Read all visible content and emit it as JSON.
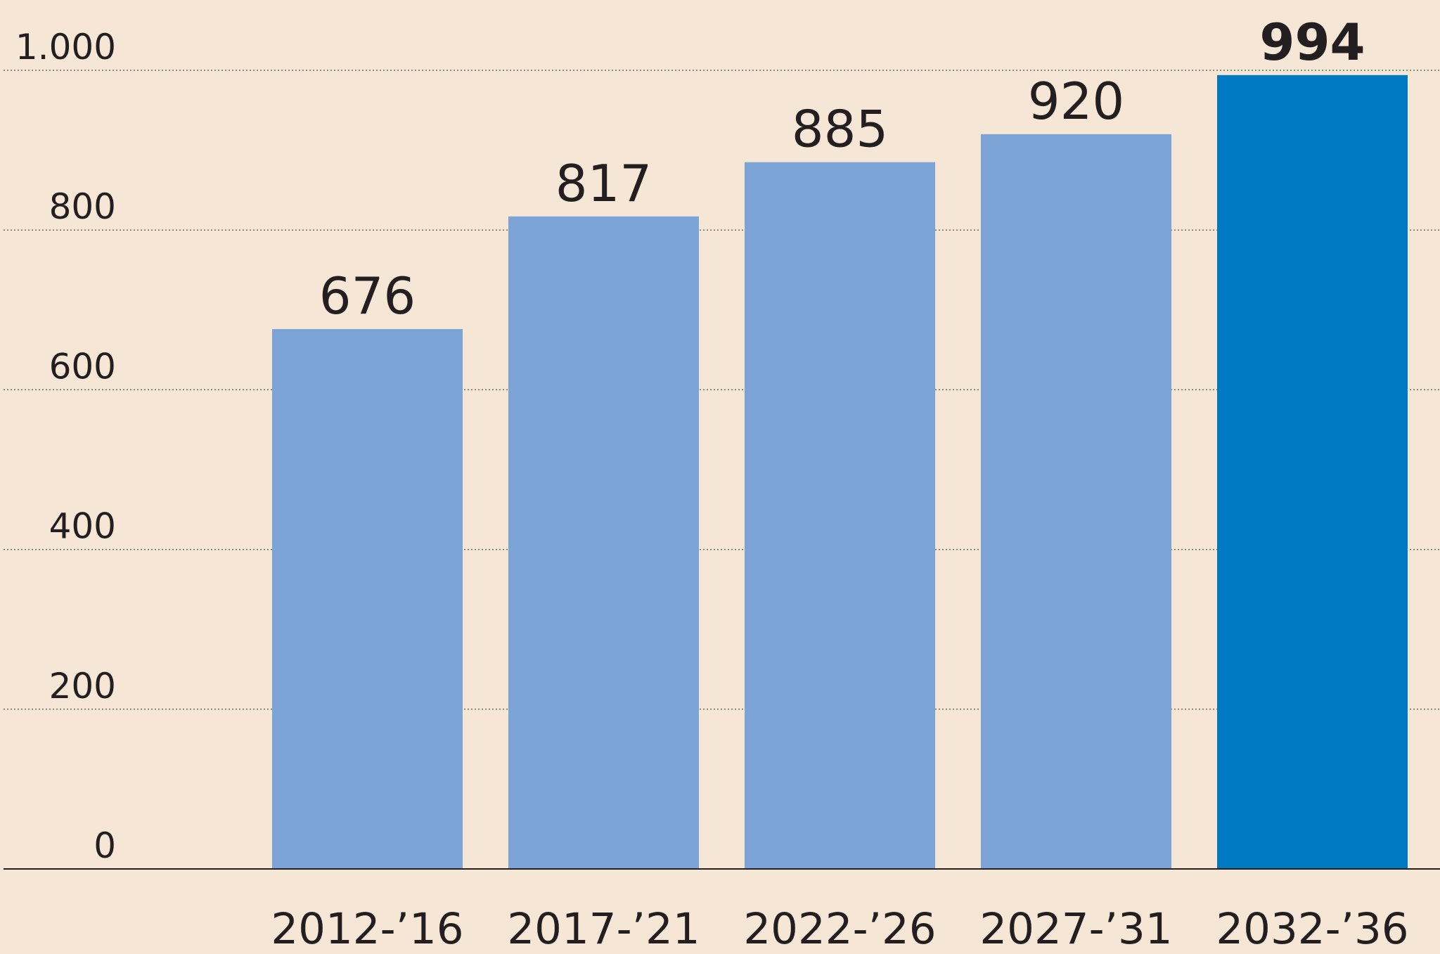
{
  "chart_data": {
    "type": "bar",
    "categories": [
      "2012-’16",
      "2017-’21",
      "2022-’26",
      "2027-’31",
      "2032-’36"
    ],
    "values": [
      676,
      817,
      885,
      920,
      994
    ],
    "value_labels": [
      "676",
      "817",
      "885",
      "920",
      "994"
    ],
    "ylim": [
      0,
      1000
    ],
    "yticks": [
      {
        "value": 0,
        "label": "0"
      },
      {
        "value": 200,
        "label": "200"
      },
      {
        "value": 400,
        "label": "400"
      },
      {
        "value": 600,
        "label": "600"
      },
      {
        "value": 800,
        "label": "800"
      },
      {
        "value": 1000,
        "label": "1.000"
      }
    ],
    "grid": true,
    "highlight_index": 4,
    "colors": {
      "bar": "#7da4d6",
      "bar_highlight": "#0079c2",
      "background": "#f5e6d6",
      "text": "#231f20"
    },
    "title": "",
    "xlabel": "",
    "ylabel": ""
  }
}
